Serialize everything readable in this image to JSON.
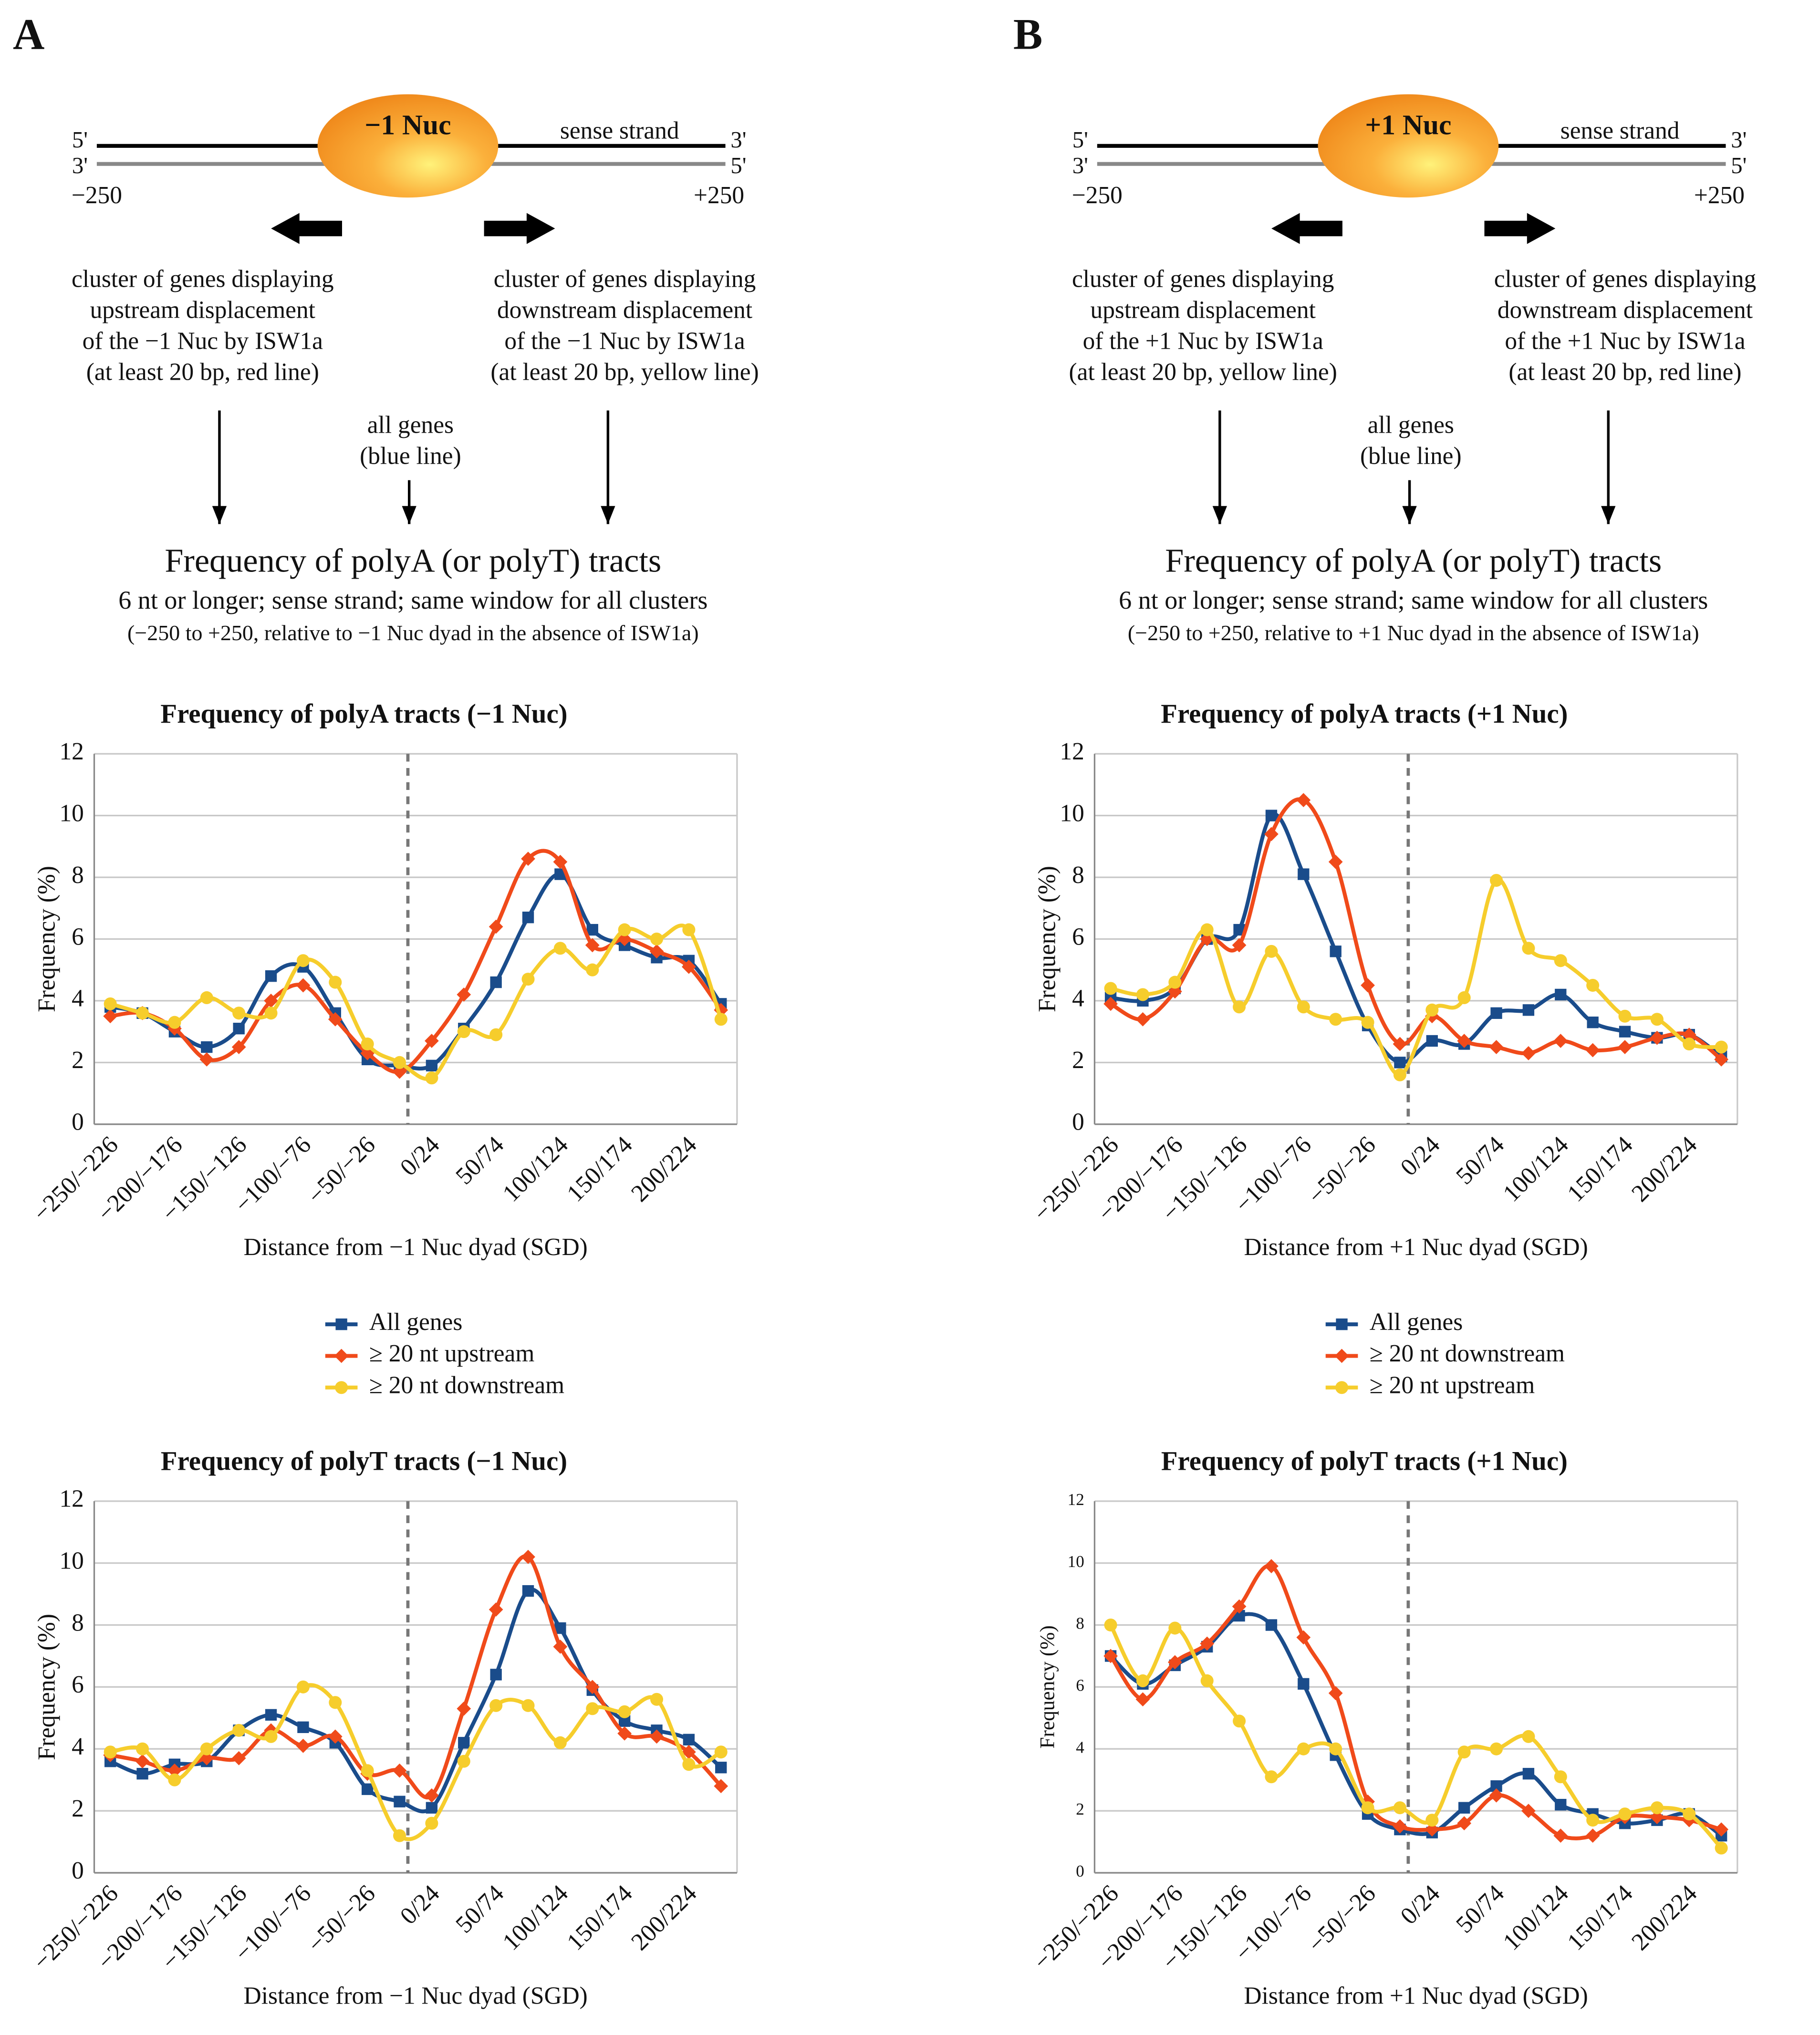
{
  "panels": [
    {
      "label": "A",
      "nucleosome": "−1 Nuc",
      "strand_left": [
        "5'",
        "3'"
      ],
      "strand_right": [
        "3'",
        "5'"
      ],
      "strand_name": "sense strand",
      "range": [
        "−250",
        "+250"
      ],
      "left_cluster": [
        "cluster of genes displaying",
        "upstream displacement",
        "of the −1 Nuc by ISW1a",
        "(at least 20 bp, red line)"
      ],
      "right_cluster": [
        "cluster of genes displaying",
        "downstream displacement",
        "of the −1 Nuc by ISW1a",
        "(at least 20 bp, yellow line)"
      ],
      "all_genes": [
        "all genes",
        "(blue line)"
      ],
      "heading": "Frequency of polyA (or polyT) tracts",
      "subheading": "6 nt or longer; sense strand; same window for all clusters",
      "note": "(−250 to +250, relative to −1 Nuc dyad in the absence of ISW1a)"
    },
    {
      "label": "B",
      "nucleosome": "+1 Nuc",
      "strand_left": [
        "5'",
        "3'"
      ],
      "strand_right": [
        "3'",
        "5'"
      ],
      "strand_name": "sense strand",
      "range": [
        "−250",
        "+250"
      ],
      "left_cluster": [
        "cluster of genes displaying",
        "upstream displacement",
        "of the +1 Nuc by ISW1a",
        "(at least 20 bp, yellow line)"
      ],
      "right_cluster": [
        "cluster of genes displaying",
        "downstream displacement",
        "of the +1 Nuc by ISW1a",
        "(at least 20 bp, red line)"
      ],
      "all_genes": [
        "all genes",
        "(blue line)"
      ],
      "heading": "Frequency of polyA (or polyT) tracts",
      "subheading": "6 nt or longer; sense strand; same window for all clusters",
      "note": "(−250 to +250, relative to +1 Nuc dyad in the absence of ISW1a)"
    }
  ],
  "chart_data": [
    {
      "type": "line",
      "title": "Frequency of polyA tracts (−1 Nuc)",
      "ylabel": "Frequency (%)",
      "xlabel": "Distance from −1 Nuc dyad (SGD)",
      "categories": [
        "−250/−226",
        null,
        "−200/−176",
        null,
        "−150/−126",
        null,
        "−100/−76",
        null,
        "−50/−26",
        null,
        "0/24",
        null,
        "50/74",
        null,
        "100/124",
        null,
        "150/174",
        null,
        "200/224",
        null
      ],
      "ylim": [
        0,
        12
      ],
      "yticks": [
        0,
        2,
        4,
        6,
        8,
        10,
        12
      ],
      "grid": true,
      "series": [
        {
          "name": "All genes",
          "color": "#1a4c8b",
          "marker": "square",
          "values": [
            3.8,
            3.6,
            3.0,
            2.5,
            3.1,
            4.8,
            5.1,
            3.6,
            2.1,
            1.9,
            1.9,
            3.1,
            4.6,
            6.7,
            8.1,
            6.3,
            5.8,
            5.4,
            5.3,
            3.9
          ]
        },
        {
          "name": "≥ 20 nt upstream",
          "color": "#f04a1a",
          "marker": "diamond",
          "values": [
            3.5,
            3.6,
            3.1,
            2.1,
            2.5,
            4.0,
            4.5,
            3.4,
            2.3,
            1.7,
            2.7,
            4.2,
            6.4,
            8.6,
            8.5,
            5.8,
            6.0,
            5.6,
            5.1,
            3.7
          ]
        },
        {
          "name": "≥ 20 nt downstream",
          "color": "#f6cd2c",
          "marker": "circle",
          "values": [
            3.9,
            3.6,
            3.3,
            4.1,
            3.6,
            3.6,
            5.3,
            4.6,
            2.6,
            2.0,
            1.5,
            3.0,
            2.9,
            4.7,
            5.7,
            5.0,
            6.3,
            6.0,
            6.3,
            3.4
          ]
        }
      ]
    },
    {
      "type": "line",
      "title": "Frequency of polyA tracts (+1 Nuc)",
      "ylabel": "Frequency (%)",
      "xlabel": "Distance from +1 Nuc dyad (SGD)",
      "categories": [
        "−250/−226",
        null,
        "−200/−176",
        null,
        "−150/−126",
        null,
        "−100/−76",
        null,
        "−50/−26",
        null,
        "0/24",
        null,
        "50/74",
        null,
        "100/124",
        null,
        "150/174",
        null,
        "200/224",
        null
      ],
      "ylim": [
        0,
        12
      ],
      "yticks": [
        0,
        2,
        4,
        6,
        8,
        10,
        12
      ],
      "grid": true,
      "series": [
        {
          "name": "All genes",
          "color": "#1a4c8b",
          "marker": "square",
          "values": [
            4.1,
            4.0,
            4.4,
            6.0,
            6.3,
            10.0,
            8.1,
            5.6,
            3.2,
            2.0,
            2.7,
            2.6,
            3.6,
            3.7,
            4.2,
            3.3,
            3.0,
            2.8,
            2.9,
            2.2
          ]
        },
        {
          "name": "≥ 20 nt downstream",
          "color": "#f04a1a",
          "marker": "diamond",
          "values": [
            3.9,
            3.4,
            4.3,
            6.0,
            5.8,
            9.4,
            10.5,
            8.5,
            4.5,
            2.6,
            3.5,
            2.7,
            2.5,
            2.3,
            2.7,
            2.4,
            2.5,
            2.8,
            2.9,
            2.1
          ]
        },
        {
          "name": "≥ 20 nt upstream",
          "color": "#f6cd2c",
          "marker": "circle",
          "values": [
            4.4,
            4.2,
            4.6,
            6.3,
            3.8,
            5.6,
            3.8,
            3.4,
            3.3,
            1.6,
            3.7,
            4.1,
            7.9,
            5.7,
            5.3,
            4.5,
            3.5,
            3.4,
            2.6,
            2.5
          ]
        }
      ]
    },
    {
      "type": "line",
      "title": "Frequency of polyT tracts (−1 Nuc)",
      "ylabel": "Frequency (%)",
      "xlabel": "Distance from −1 Nuc dyad (SGD)",
      "categories": [
        "−250/−226",
        null,
        "−200/−176",
        null,
        "−150/−126",
        null,
        "−100/−76",
        null,
        "−50/−26",
        null,
        "0/24",
        null,
        "50/74",
        null,
        "100/124",
        null,
        "150/174",
        null,
        "200/224",
        null
      ],
      "ylim": [
        0,
        12
      ],
      "yticks": [
        0,
        2,
        4,
        6,
        8,
        10,
        12
      ],
      "grid": true,
      "series": [
        {
          "color": "#1a4c8b",
          "marker": "square",
          "values": [
            3.6,
            3.2,
            3.5,
            3.6,
            4.6,
            5.1,
            4.7,
            4.2,
            2.7,
            2.3,
            2.1,
            4.2,
            6.4,
            9.1,
            7.9,
            5.9,
            4.9,
            4.6,
            4.3,
            3.4
          ]
        },
        {
          "color": "#f04a1a",
          "marker": "diamond",
          "values": [
            3.8,
            3.6,
            3.3,
            3.7,
            3.7,
            4.6,
            4.1,
            4.4,
            3.2,
            3.3,
            2.5,
            5.3,
            8.5,
            10.2,
            7.3,
            6.0,
            4.5,
            4.4,
            3.9,
            2.8
          ]
        },
        {
          "color": "#f6cd2c",
          "marker": "circle",
          "values": [
            3.9,
            4.0,
            3.0,
            4.0,
            4.6,
            4.4,
            6.0,
            5.5,
            3.3,
            1.2,
            1.6,
            3.6,
            5.4,
            5.4,
            4.2,
            5.3,
            5.2,
            5.6,
            3.5,
            3.9
          ]
        }
      ]
    },
    {
      "type": "line",
      "title": "Frequency of polyT tracts (+1 Nuc)",
      "ylabel": "Frequency (%)",
      "xlabel": "Distance from +1 Nuc dyad (SGD)",
      "categories": [
        "−250/−226",
        null,
        "−200/−176",
        null,
        "−150/−126",
        null,
        "−100/−76",
        null,
        "−50/−26",
        null,
        "0/24",
        null,
        "50/74",
        null,
        "100/124",
        null,
        "150/174",
        null,
        "200/224",
        null
      ],
      "ylim": [
        0,
        12
      ],
      "yticks": [
        0,
        2,
        4,
        6,
        8,
        10,
        12
      ],
      "grid": true,
      "series": [
        {
          "color": "#1a4c8b",
          "marker": "square",
          "values": [
            7.0,
            6.1,
            6.7,
            7.3,
            8.3,
            8.0,
            6.1,
            3.8,
            1.9,
            1.4,
            1.3,
            2.1,
            2.8,
            3.2,
            2.2,
            1.9,
            1.6,
            1.7,
            1.9,
            1.2
          ]
        },
        {
          "color": "#f04a1a",
          "marker": "diamond",
          "values": [
            7.0,
            5.6,
            6.8,
            7.4,
            8.6,
            9.9,
            7.6,
            5.8,
            2.3,
            1.5,
            1.4,
            1.6,
            2.5,
            2.0,
            1.2,
            1.2,
            1.8,
            1.8,
            1.7,
            1.4
          ]
        },
        {
          "color": "#f6cd2c",
          "marker": "circle",
          "values": [
            8.0,
            6.2,
            7.9,
            6.2,
            4.9,
            3.1,
            4.0,
            4.0,
            2.1,
            2.1,
            1.7,
            3.9,
            4.0,
            4.4,
            3.1,
            1.7,
            1.9,
            2.1,
            1.9,
            0.8
          ]
        }
      ]
    }
  ]
}
